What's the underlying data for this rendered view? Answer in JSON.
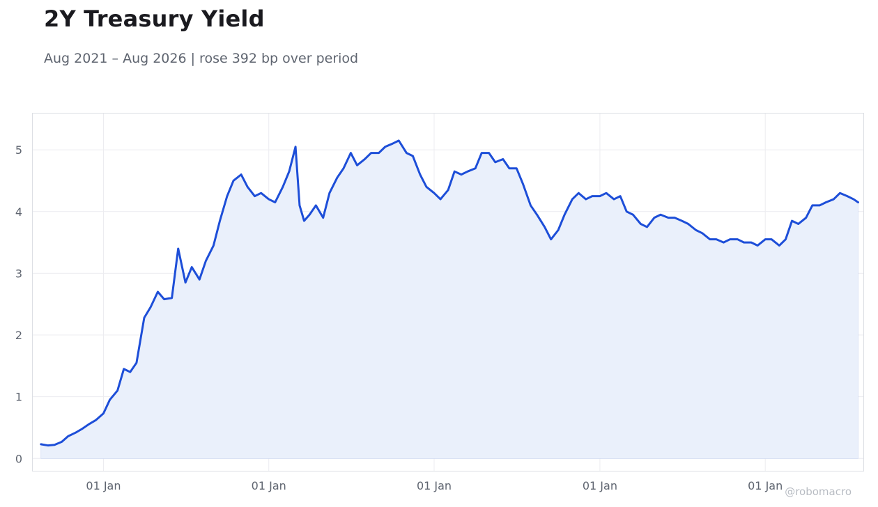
{
  "header": {
    "title": "2Y Treasury Yield",
    "subtitle": "Aug 2021 – Aug 2026 | rose 392 bp over period"
  },
  "watermark": "@robomacro",
  "colors": {
    "line": "#1d4ed8",
    "fill": "#eaf0fb",
    "grid": "#ececf0",
    "frame": "#dcdfe4",
    "text": "#5f6570"
  },
  "chart_data": {
    "type": "area",
    "title": "2Y Treasury Yield",
    "subtitle": "Aug 2021 – Aug 2026 | rose 392 bp over period",
    "xlabel": "",
    "ylabel": "",
    "x_range": [
      "2021-08-01",
      "2026-08-01"
    ],
    "ylim": [
      -0.2,
      5.6
    ],
    "grid": true,
    "legend": "none",
    "y_ticks": [
      0,
      1,
      2,
      3,
      4,
      5
    ],
    "x_ticks": [
      {
        "date": "2022-01-01",
        "label": "01 Jan"
      },
      {
        "date": "2023-01-01",
        "label": "01 Jan"
      },
      {
        "date": "2024-01-01",
        "label": "01 Jan"
      },
      {
        "date": "2025-01-01",
        "label": "01 Jan"
      },
      {
        "date": "2026-01-01",
        "label": "01 Jan"
      }
    ],
    "series": [
      {
        "values": [
          [
            "2021-08-16",
            0.23
          ],
          [
            "2021-09-01",
            0.21
          ],
          [
            "2021-09-15",
            0.22
          ],
          [
            "2021-10-01",
            0.27
          ],
          [
            "2021-10-15",
            0.36
          ],
          [
            "2021-11-01",
            0.42
          ],
          [
            "2021-11-15",
            0.48
          ],
          [
            "2021-12-01",
            0.56
          ],
          [
            "2021-12-15",
            0.62
          ],
          [
            "2022-01-01",
            0.73
          ],
          [
            "2022-01-15",
            0.95
          ],
          [
            "2022-02-01",
            1.1
          ],
          [
            "2022-02-15",
            1.45
          ],
          [
            "2022-03-01",
            1.4
          ],
          [
            "2022-03-15",
            1.55
          ],
          [
            "2022-04-01",
            2.28
          ],
          [
            "2022-04-15",
            2.45
          ],
          [
            "2022-05-01",
            2.7
          ],
          [
            "2022-05-15",
            2.58
          ],
          [
            "2022-06-01",
            2.6
          ],
          [
            "2022-06-15",
            3.4
          ],
          [
            "2022-07-01",
            2.85
          ],
          [
            "2022-07-15",
            3.1
          ],
          [
            "2022-08-01",
            2.9
          ],
          [
            "2022-08-15",
            3.2
          ],
          [
            "2022-09-01",
            3.45
          ],
          [
            "2022-09-15",
            3.85
          ],
          [
            "2022-10-01",
            4.25
          ],
          [
            "2022-10-15",
            4.5
          ],
          [
            "2022-11-01",
            4.6
          ],
          [
            "2022-11-15",
            4.4
          ],
          [
            "2022-12-01",
            4.25
          ],
          [
            "2022-12-15",
            4.3
          ],
          [
            "2023-01-01",
            4.2
          ],
          [
            "2023-01-15",
            4.15
          ],
          [
            "2023-02-01",
            4.4
          ],
          [
            "2023-02-15",
            4.65
          ],
          [
            "2023-03-01",
            5.05
          ],
          [
            "2023-03-10",
            4.1
          ],
          [
            "2023-03-20",
            3.85
          ],
          [
            "2023-04-01",
            3.95
          ],
          [
            "2023-04-15",
            4.1
          ],
          [
            "2023-05-01",
            3.9
          ],
          [
            "2023-05-15",
            4.3
          ],
          [
            "2023-06-01",
            4.55
          ],
          [
            "2023-06-15",
            4.7
          ],
          [
            "2023-07-01",
            4.95
          ],
          [
            "2023-07-15",
            4.75
          ],
          [
            "2023-08-01",
            4.85
          ],
          [
            "2023-08-15",
            4.95
          ],
          [
            "2023-09-01",
            4.95
          ],
          [
            "2023-09-15",
            5.05
          ],
          [
            "2023-10-01",
            5.1
          ],
          [
            "2023-10-15",
            5.15
          ],
          [
            "2023-11-01",
            4.95
          ],
          [
            "2023-11-15",
            4.9
          ],
          [
            "2023-12-01",
            4.6
          ],
          [
            "2023-12-15",
            4.4
          ],
          [
            "2024-01-01",
            4.3
          ],
          [
            "2024-01-15",
            4.2
          ],
          [
            "2024-02-01",
            4.35
          ],
          [
            "2024-02-15",
            4.65
          ],
          [
            "2024-03-01",
            4.6
          ],
          [
            "2024-03-15",
            4.65
          ],
          [
            "2024-04-01",
            4.7
          ],
          [
            "2024-04-15",
            4.95
          ],
          [
            "2024-05-01",
            4.95
          ],
          [
            "2024-05-15",
            4.8
          ],
          [
            "2024-06-01",
            4.85
          ],
          [
            "2024-06-15",
            4.7
          ],
          [
            "2024-07-01",
            4.7
          ],
          [
            "2024-07-15",
            4.45
          ],
          [
            "2024-08-01",
            4.1
          ],
          [
            "2024-08-15",
            3.95
          ],
          [
            "2024-09-01",
            3.75
          ],
          [
            "2024-09-15",
            3.55
          ],
          [
            "2024-10-01",
            3.7
          ],
          [
            "2024-10-15",
            3.95
          ],
          [
            "2024-11-01",
            4.2
          ],
          [
            "2024-11-15",
            4.3
          ],
          [
            "2024-12-01",
            4.2
          ],
          [
            "2024-12-15",
            4.25
          ],
          [
            "2025-01-01",
            4.25
          ],
          [
            "2025-01-15",
            4.3
          ],
          [
            "2025-02-01",
            4.2
          ],
          [
            "2025-02-15",
            4.25
          ],
          [
            "2025-03-01",
            4.0
          ],
          [
            "2025-03-15",
            3.95
          ],
          [
            "2025-04-01",
            3.8
          ],
          [
            "2025-04-15",
            3.75
          ],
          [
            "2025-05-01",
            3.9
          ],
          [
            "2025-05-15",
            3.95
          ],
          [
            "2025-06-01",
            3.9
          ],
          [
            "2025-06-15",
            3.9
          ],
          [
            "2025-07-01",
            3.85
          ],
          [
            "2025-07-15",
            3.8
          ],
          [
            "2025-08-01",
            3.7
          ],
          [
            "2025-08-15",
            3.65
          ],
          [
            "2025-09-01",
            3.55
          ],
          [
            "2025-09-15",
            3.55
          ],
          [
            "2025-10-01",
            3.5
          ],
          [
            "2025-10-15",
            3.55
          ],
          [
            "2025-11-01",
            3.55
          ],
          [
            "2025-11-15",
            3.5
          ],
          [
            "2025-12-01",
            3.5
          ],
          [
            "2025-12-15",
            3.45
          ],
          [
            "2026-01-01",
            3.55
          ],
          [
            "2026-01-15",
            3.55
          ],
          [
            "2026-02-01",
            3.45
          ],
          [
            "2026-02-15",
            3.55
          ],
          [
            "2026-03-01",
            3.85
          ],
          [
            "2026-03-15",
            3.8
          ],
          [
            "2026-04-01",
            3.9
          ],
          [
            "2026-04-15",
            4.1
          ],
          [
            "2026-05-01",
            4.1
          ],
          [
            "2026-05-15",
            4.15
          ],
          [
            "2026-06-01",
            4.2
          ],
          [
            "2026-06-15",
            4.3
          ],
          [
            "2026-07-01",
            4.25
          ],
          [
            "2026-07-15",
            4.2
          ],
          [
            "2026-07-25",
            4.15
          ]
        ]
      }
    ]
  }
}
